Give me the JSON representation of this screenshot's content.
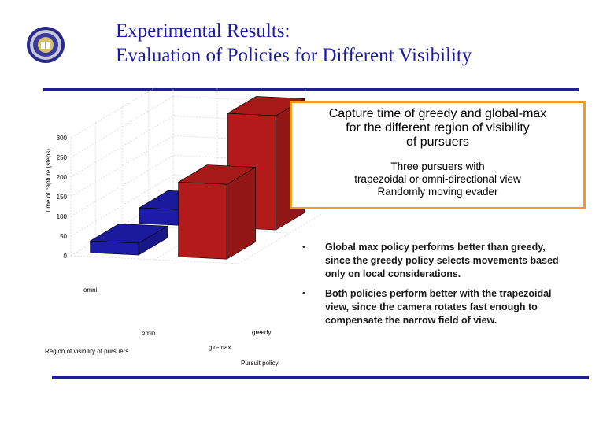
{
  "header": {
    "title_line1": "Experimental Results:",
    "title_line2": "Evaluation of Policies for Different Visibility"
  },
  "callout": {
    "title": "Capture time of greedy and global-max\nfor the different region of visibility\nof pursuers",
    "subtitle": "Three pursuers with\ntrapezoidal  or omni-directional view\nRandomly moving evader"
  },
  "bullets": [
    {
      "marker": "•",
      "text": "Global max policy performs better than greedy, since the greedy policy selects movements based only on local considerations."
    },
    {
      "marker": "•",
      "text": "Both policies perform better with the trapezoidal view, since the camera rotates fast enough to compensate the narrow field of view."
    }
  ],
  "chart_data": {
    "type": "bar",
    "subtype": "3d-bar",
    "zlabel": "Time of capture (steps)",
    "xlabel": "Region of visibility of pursuers",
    "ylabel": "Pursuit policy",
    "z_ticks": [
      "0",
      "50",
      "100",
      "150",
      "200",
      "250",
      "300"
    ],
    "zlim": [
      0,
      300
    ],
    "visibility_categories": [
      "trapezoidal",
      "omni"
    ],
    "visibility_tick_labels": [
      "",
      "omni"
    ],
    "policy_categories": [
      "greedy",
      "global-max"
    ],
    "policy_tick_labels": [
      "greedy",
      "glo-max"
    ],
    "extra_tick_labels": [
      "omin"
    ],
    "grid": true,
    "bars": [
      {
        "visibility": "trapezoidal",
        "policy": "greedy",
        "value": 40,
        "color": "#1c1ca8"
      },
      {
        "visibility": "trapezoidal",
        "policy": "global-max",
        "value": 30,
        "color": "#1c1ca8"
      },
      {
        "visibility": "omni",
        "policy": "greedy",
        "value": 290,
        "color": "#b31b1b"
      },
      {
        "visibility": "omni",
        "policy": "global-max",
        "value": 190,
        "color": "#b31b1b"
      }
    ]
  },
  "colors": {
    "title": "#1a1aa8",
    "rule": "#1f1f8f",
    "callout_border": "#f29b1d"
  },
  "logo": {
    "icon": "university-seal-icon"
  }
}
